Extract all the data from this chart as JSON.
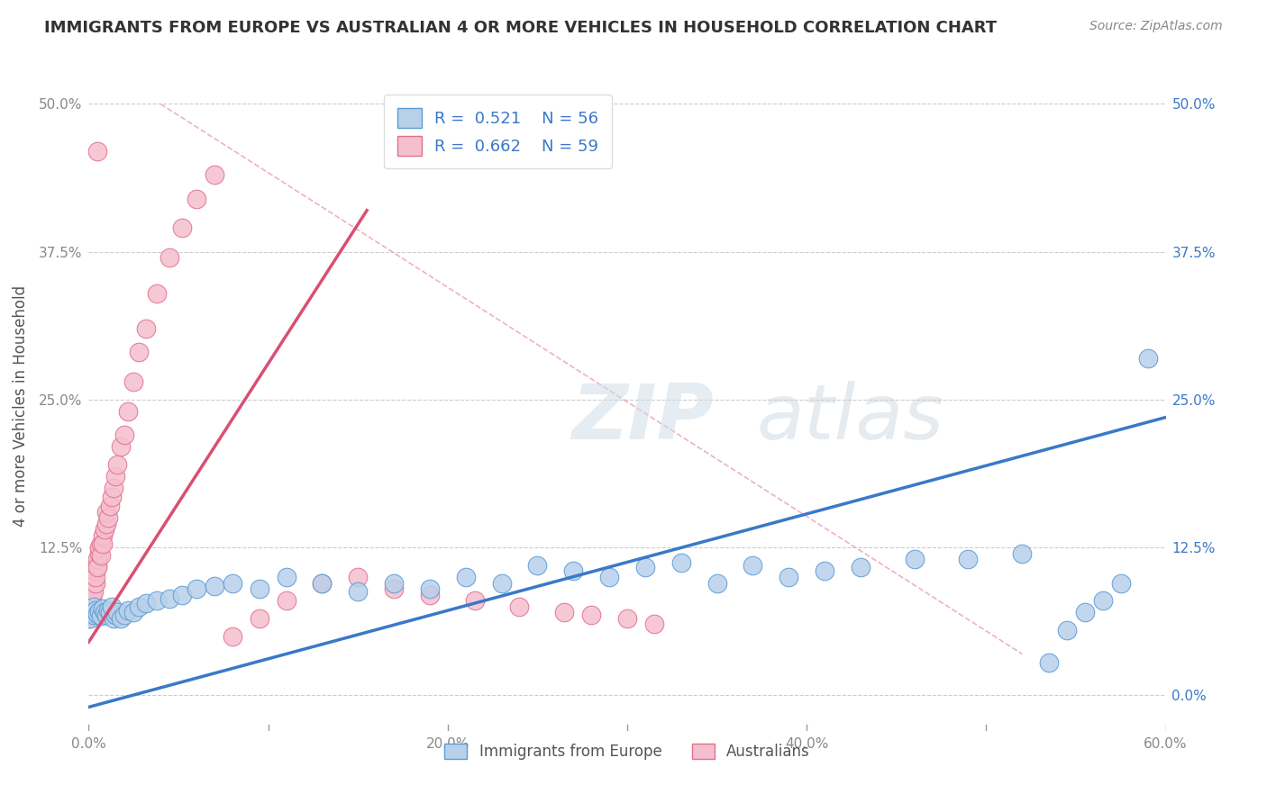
{
  "title": "IMMIGRANTS FROM EUROPE VS AUSTRALIAN 4 OR MORE VEHICLES IN HOUSEHOLD CORRELATION CHART",
  "source": "Source: ZipAtlas.com",
  "ylabel": "4 or more Vehicles in Household",
  "xmin": 0.0,
  "xmax": 0.6,
  "ymin": -0.03,
  "ymax": 0.52,
  "xticks": [
    0.0,
    0.1,
    0.2,
    0.3,
    0.4,
    0.5,
    0.6
  ],
  "xtick_labels": [
    "0.0%",
    "",
    "20.0%",
    "",
    "40.0%",
    "",
    "60.0%"
  ],
  "yticks": [
    0.0,
    0.125,
    0.25,
    0.375,
    0.5
  ],
  "ytick_labels_left": [
    "",
    "12.5%",
    "25.0%",
    "37.5%",
    "50.0%"
  ],
  "ytick_labels_right": [
    "0.0%",
    "12.5%",
    "25.0%",
    "37.5%",
    "50.0%"
  ],
  "legend_labels": [
    "Immigrants from Europe",
    "Australians"
  ],
  "blue_R": 0.521,
  "blue_N": 56,
  "pink_R": 0.662,
  "pink_N": 59,
  "blue_fill": "#b8d0ea",
  "pink_fill": "#f5bfce",
  "blue_edge": "#5b9bd5",
  "pink_edge": "#e07090",
  "blue_line": "#3a78c9",
  "pink_line": "#d94f72",
  "ref_line": "#e8a0b0",
  "grid_color": "#cccccc",
  "watermark": "ZIPAtlas",
  "blue_scatter_x": [
    0.001,
    0.002,
    0.003,
    0.003,
    0.004,
    0.005,
    0.006,
    0.007,
    0.008,
    0.009,
    0.01,
    0.011,
    0.012,
    0.013,
    0.014,
    0.015,
    0.016,
    0.018,
    0.02,
    0.022,
    0.025,
    0.028,
    0.032,
    0.038,
    0.045,
    0.052,
    0.06,
    0.07,
    0.08,
    0.095,
    0.11,
    0.13,
    0.15,
    0.17,
    0.19,
    0.21,
    0.23,
    0.25,
    0.27,
    0.29,
    0.31,
    0.33,
    0.35,
    0.37,
    0.39,
    0.41,
    0.43,
    0.46,
    0.49,
    0.52,
    0.535,
    0.545,
    0.555,
    0.565,
    0.575,
    0.59
  ],
  "blue_scatter_y": [
    0.065,
    0.07,
    0.068,
    0.075,
    0.072,
    0.069,
    0.071,
    0.067,
    0.073,
    0.07,
    0.068,
    0.072,
    0.07,
    0.075,
    0.065,
    0.068,
    0.07,
    0.065,
    0.068,
    0.072,
    0.07,
    0.075,
    0.078,
    0.08,
    0.082,
    0.085,
    0.09,
    0.092,
    0.095,
    0.09,
    0.1,
    0.095,
    0.088,
    0.095,
    0.09,
    0.1,
    0.095,
    0.11,
    0.105,
    0.1,
    0.108,
    0.112,
    0.095,
    0.11,
    0.1,
    0.105,
    0.108,
    0.115,
    0.115,
    0.12,
    0.028,
    0.055,
    0.07,
    0.08,
    0.095,
    0.285
  ],
  "pink_scatter_x": [
    0.0,
    0.0,
    0.001,
    0.001,
    0.001,
    0.001,
    0.002,
    0.002,
    0.002,
    0.002,
    0.003,
    0.003,
    0.003,
    0.004,
    0.004,
    0.004,
    0.005,
    0.005,
    0.005,
    0.006,
    0.006,
    0.007,
    0.007,
    0.008,
    0.008,
    0.009,
    0.01,
    0.01,
    0.011,
    0.012,
    0.013,
    0.014,
    0.015,
    0.016,
    0.018,
    0.02,
    0.022,
    0.025,
    0.028,
    0.032,
    0.038,
    0.045,
    0.052,
    0.06,
    0.07,
    0.08,
    0.095,
    0.11,
    0.13,
    0.15,
    0.17,
    0.19,
    0.215,
    0.24,
    0.265,
    0.28,
    0.3,
    0.315,
    0.005
  ],
  "pink_scatter_y": [
    0.065,
    0.072,
    0.075,
    0.08,
    0.07,
    0.068,
    0.078,
    0.082,
    0.09,
    0.085,
    0.095,
    0.1,
    0.088,
    0.095,
    0.105,
    0.1,
    0.11,
    0.115,
    0.108,
    0.12,
    0.125,
    0.128,
    0.118,
    0.135,
    0.128,
    0.14,
    0.145,
    0.155,
    0.15,
    0.16,
    0.168,
    0.175,
    0.185,
    0.195,
    0.21,
    0.22,
    0.24,
    0.265,
    0.29,
    0.31,
    0.34,
    0.37,
    0.395,
    0.42,
    0.44,
    0.05,
    0.065,
    0.08,
    0.095,
    0.1,
    0.09,
    0.085,
    0.08,
    0.075,
    0.07,
    0.068,
    0.065,
    0.06,
    0.46
  ],
  "blue_line_x": [
    0.0,
    0.6
  ],
  "blue_line_y": [
    -0.01,
    0.235
  ],
  "pink_line_x": [
    0.0,
    0.155
  ],
  "pink_line_y": [
    0.045,
    0.41
  ],
  "ref_line_x": [
    0.04,
    0.52
  ],
  "ref_line_y": [
    0.5,
    0.035
  ]
}
